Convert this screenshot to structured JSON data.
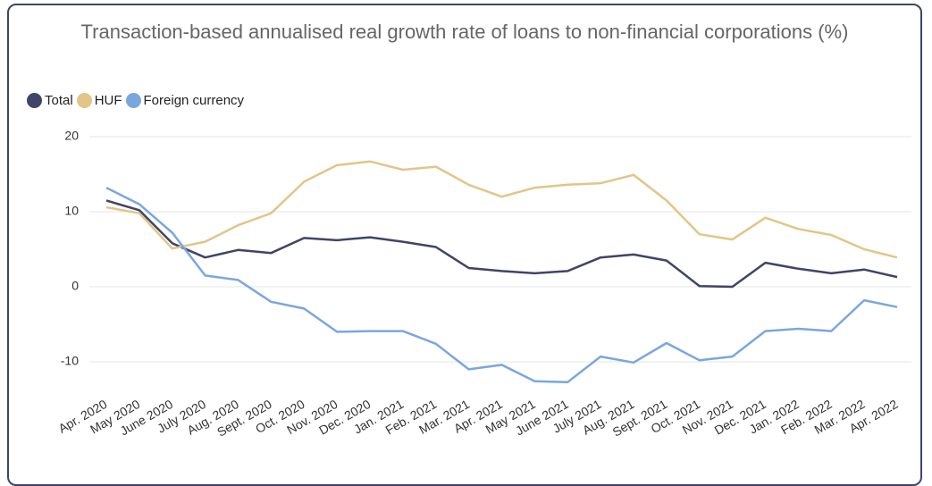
{
  "chart_data": {
    "type": "line",
    "title": "Transaction-based annualised real growth rate of loans to non-financial corporations (%)",
    "categories": [
      "Apr. 2020",
      "May 2020",
      "June 2020",
      "July 2020",
      "Aug. 2020",
      "Sept. 2020",
      "Oct. 2020",
      "Nov. 2020",
      "Dec. 2020",
      "Jan. 2021",
      "Feb. 2021",
      "Mar. 2021",
      "Apr. 2021",
      "May 2021",
      "June 2021",
      "July 2021",
      "Aug. 2021",
      "Sept. 2021",
      "Oct. 2021",
      "Nov. 2021",
      "Dec. 2021",
      "Jan. 2022",
      "Feb. 2022",
      "Mar. 2022",
      "Apr. 2022"
    ],
    "series": [
      {
        "name": "Total",
        "color": "#3f4468",
        "values": [
          11.5,
          10.2,
          5.8,
          3.9,
          4.9,
          4.5,
          6.5,
          6.2,
          6.6,
          6.0,
          5.3,
          2.5,
          2.1,
          1.8,
          2.1,
          3.9,
          4.3,
          3.5,
          0.1,
          0.0,
          3.2,
          2.4,
          1.8,
          2.3,
          1.3
        ]
      },
      {
        "name": "HUF",
        "color": "#e2c587",
        "values": [
          10.6,
          9.8,
          5.1,
          6.0,
          8.2,
          9.8,
          14.0,
          16.2,
          16.7,
          15.6,
          16.0,
          13.6,
          12.0,
          13.2,
          13.6,
          13.8,
          14.9,
          11.5,
          7.0,
          6.3,
          9.2,
          7.7,
          6.9,
          5.0,
          3.9
        ]
      },
      {
        "name": "Foreign currency",
        "color": "#7aa6e0",
        "values": [
          13.2,
          11.0,
          7.2,
          1.5,
          0.9,
          -2.0,
          -2.9,
          -6.0,
          -5.9,
          -5.9,
          -7.6,
          -11.0,
          -10.4,
          -12.6,
          -12.7,
          -9.3,
          -10.1,
          -7.5,
          -9.8,
          -9.3,
          -5.9,
          -5.6,
          -5.9,
          -1.8,
          -2.7
        ]
      }
    ],
    "ylim": [
      -14,
      20
    ],
    "yticks": [
      -10,
      0,
      10,
      20
    ],
    "grid": true,
    "legend": "top-left"
  }
}
